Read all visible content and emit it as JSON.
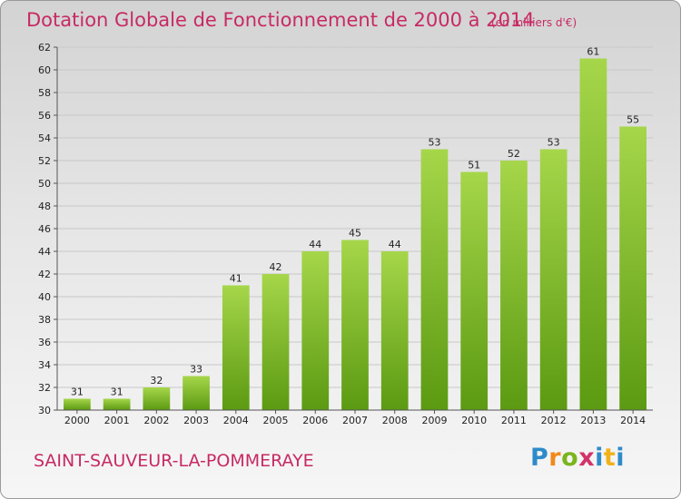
{
  "header": {
    "title": "Dotation Globale de Fonctionnement de 2000 à 2014",
    "unit": "(en milliers d'€)"
  },
  "footer": {
    "commune": "SAINT-SAUVEUR-LA-POMMERAYE",
    "logo": {
      "p": "P",
      "r": "r",
      "o": "o",
      "x": "x",
      "i": "i",
      "t": "t",
      "i2": "i"
    }
  },
  "colors": {
    "title": "#c72a63",
    "bar_top": "#a6d64a",
    "bar_bottom": "#5b9a12",
    "grid": "#c8c8c8"
  },
  "chart_data": {
    "type": "bar",
    "title": "Dotation Globale de Fonctionnement de 2000 à 2014",
    "subtitle": "(en milliers d'€)",
    "xlabel": "",
    "ylabel": "",
    "ylim": [
      30,
      62
    ],
    "yticks": [
      30,
      32,
      34,
      36,
      38,
      40,
      42,
      44,
      46,
      48,
      50,
      52,
      54,
      56,
      58,
      60,
      62
    ],
    "grid": true,
    "categories": [
      "2000",
      "2001",
      "2002",
      "2003",
      "2004",
      "2005",
      "2006",
      "2007",
      "2008",
      "2009",
      "2010",
      "2011",
      "2012",
      "2013",
      "2014"
    ],
    "values": [
      31,
      31,
      32,
      33,
      41,
      42,
      44,
      45,
      44,
      53,
      51,
      52,
      53,
      61,
      55
    ]
  }
}
